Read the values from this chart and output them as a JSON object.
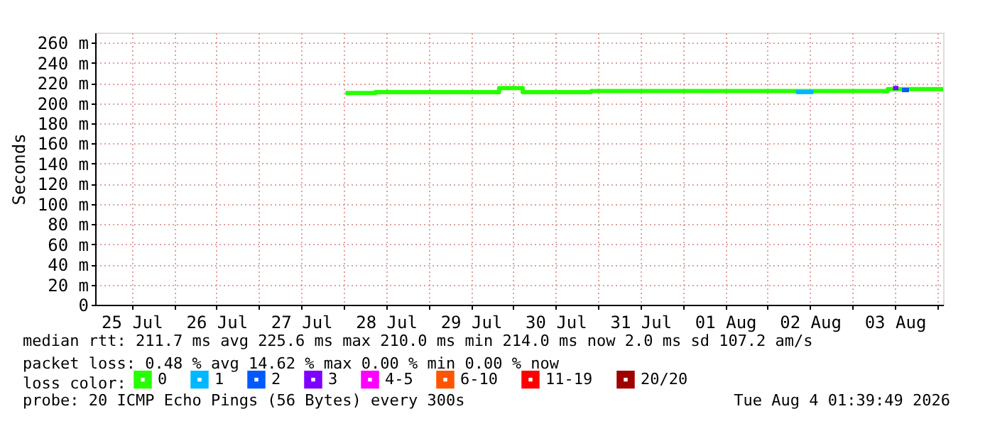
{
  "chart_data": {
    "type": "step",
    "ylabel": "Seconds",
    "legend_title": "loss color:",
    "legend": "bottom",
    "grid": true,
    "line_style": "solid",
    "marker": "none",
    "xlim": [
      "2026-07-25T01:40",
      "2026-08-04T01:40"
    ],
    "xticks": [
      {
        "value": "2026-07-25T12:00",
        "label": "25 Jul"
      },
      {
        "value": "2026-07-26T00:00",
        "label": null
      },
      {
        "value": "2026-07-26T12:00",
        "label": "26 Jul"
      },
      {
        "value": "2026-07-27T00:00",
        "label": null
      },
      {
        "value": "2026-07-27T12:00",
        "label": "27 Jul"
      },
      {
        "value": "2026-07-28T00:00",
        "label": null
      },
      {
        "value": "2026-07-28T12:00",
        "label": "28 Jul"
      },
      {
        "value": "2026-07-29T00:00",
        "label": null
      },
      {
        "value": "2026-07-29T12:00",
        "label": "29 Jul"
      },
      {
        "value": "2026-07-30T00:00",
        "label": null
      },
      {
        "value": "2026-07-30T12:00",
        "label": "30 Jul"
      },
      {
        "value": "2026-07-31T00:00",
        "label": null
      },
      {
        "value": "2026-07-31T12:00",
        "label": "31 Jul"
      },
      {
        "value": "2026-08-01T00:00",
        "label": null
      },
      {
        "value": "2026-08-01T12:00",
        "label": "01 Aug"
      },
      {
        "value": "2026-08-02T00:00",
        "label": null
      },
      {
        "value": "2026-08-02T12:00",
        "label": "02 Aug"
      },
      {
        "value": "2026-08-03T00:00",
        "label": null
      },
      {
        "value": "2026-08-03T12:00",
        "label": "03 Aug"
      },
      {
        "value": "2026-08-04T00:00",
        "label": null
      }
    ],
    "ylim": [
      0,
      270
    ],
    "yticks": [
      0,
      {
        "value": 20,
        "label": "20 m"
      },
      {
        "value": 40,
        "label": "40 m"
      },
      {
        "value": 60,
        "label": "60 m"
      },
      {
        "value": 80,
        "label": "80 m"
      },
      {
        "value": 100,
        "label": "100 m"
      },
      {
        "value": 120,
        "label": "120 m"
      },
      {
        "value": 140,
        "label": "140 m"
      },
      {
        "value": 160,
        "label": "160 m"
      },
      {
        "value": 180,
        "label": "180 m"
      },
      {
        "value": 200,
        "label": "200 m"
      },
      {
        "value": 220,
        "label": "220 m"
      },
      {
        "value": 240,
        "label": "240 m"
      },
      {
        "value": 260,
        "label": "260 m"
      }
    ],
    "series": [
      {
        "name": "0",
        "color": "#26ff00",
        "x": [
          "2026-07-28T00:30",
          "2026-07-28T09:00",
          "2026-07-29T20:00",
          "2026-07-30T02:40",
          "2026-07-30T22:00",
          "2026-08-03T10:00",
          "2026-08-04T01:40"
        ],
        "values": [
          210,
          211,
          215,
          211,
          212,
          214,
          214
        ]
      },
      {
        "name": "1",
        "color": "#00b8ff",
        "x": [
          "2026-08-02T08:00",
          "2026-08-02T13:00"
        ],
        "values": [
          211,
          211
        ]
      },
      {
        "name": "2",
        "color": "#0059ff",
        "x": [
          "2026-08-03T14:00",
          "2026-08-03T16:00"
        ],
        "values": [
          213,
          213
        ]
      },
      {
        "name": "3",
        "color": "#7e00ff",
        "x": [
          "2026-08-03T11:30",
          "2026-08-03T13:00"
        ],
        "values": [
          215,
          215
        ]
      },
      {
        "name": "4-5",
        "color": "#ff00ff"
      },
      {
        "name": "6-10",
        "color": "#ff5500"
      },
      {
        "name": "11-19",
        "color": "#ff0000"
      },
      {
        "name": "20/20",
        "color": "#a10000"
      }
    ],
    "annotations": [
      "median rtt:  211.7 ms avg  225.6 ms max  210.0 ms min  214.0 ms now  2.0 ms sd  107.2   am/s",
      "packet loss: 0.48 % avg  14.62 % max  0.00 % min  0.00 % now",
      "probe:       20 ICMP Echo Pings (56 Bytes) every 300s",
      "Tue Aug  4 01:39:49 2026"
    ]
  }
}
